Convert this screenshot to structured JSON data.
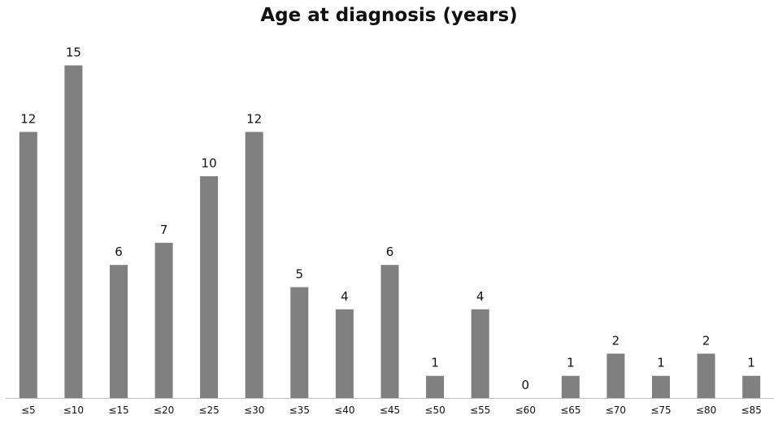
{
  "chart_data": {
    "type": "bar",
    "title": "Age at diagnosis (years)",
    "categories": [
      "≤5",
      "≤10",
      "≤15",
      "≤20",
      "≤25",
      "≤30",
      "≤35",
      "≤40",
      "≤45",
      "≤50",
      "≤55",
      "≤60",
      "≤65",
      "≤70",
      "≤75",
      "≤80",
      "≤85"
    ],
    "values": [
      12,
      15,
      6,
      7,
      10,
      12,
      5,
      4,
      6,
      1,
      4,
      0,
      1,
      2,
      1,
      2,
      1
    ],
    "data_labels": [
      "12",
      "15",
      "6",
      "7",
      "10",
      "12",
      "5",
      "4",
      "6",
      "1",
      "4",
      "0",
      "1",
      "2",
      "1",
      "2",
      "1"
    ],
    "xlabel": "",
    "ylabel": "",
    "ylim": [
      0,
      15
    ],
    "grid": false,
    "legend": "none",
    "colors": {
      "bar": "#808080",
      "axis": "#bfbfbf",
      "text": "#111111"
    }
  }
}
